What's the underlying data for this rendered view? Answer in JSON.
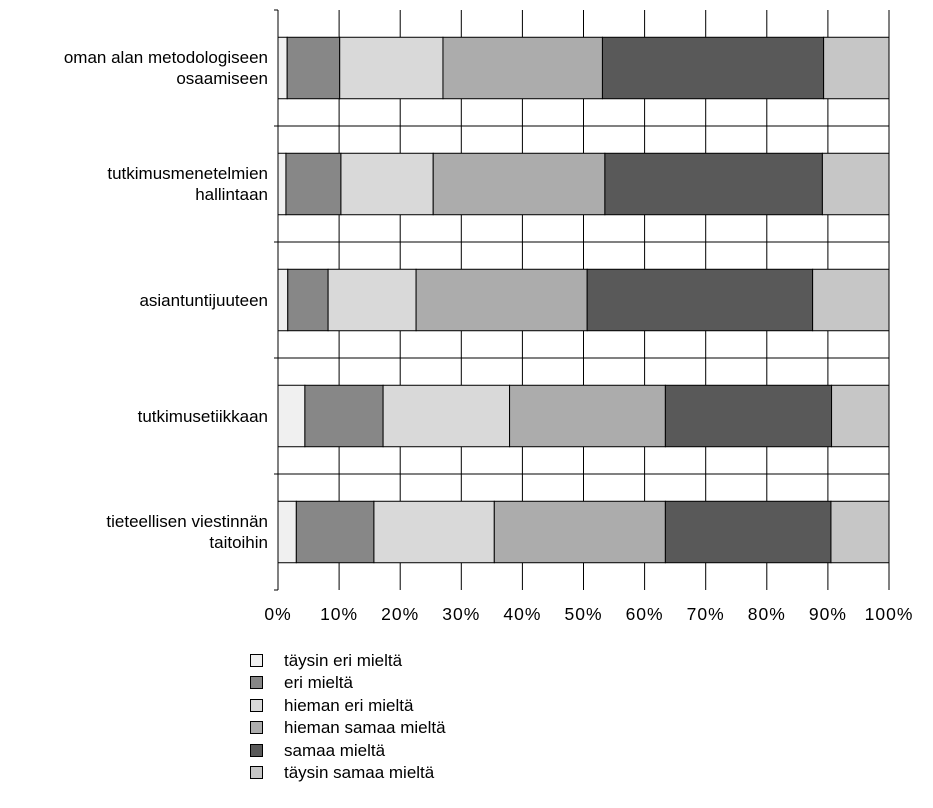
{
  "chart_data": {
    "type": "bar",
    "orientation": "horizontal",
    "stacked": true,
    "percent": true,
    "categories": [
      [
        "oman alan metodologiseen",
        "osaamiseen"
      ],
      [
        "tutkimusmenetelmien",
        "hallintaan"
      ],
      [
        "asiantuntijuuteen"
      ],
      [
        "tutkimusetiikkaan"
      ],
      [
        "tieteellisen viestinnän",
        "taitoihin"
      ]
    ],
    "series": [
      {
        "name": "täysin eri mieltä",
        "color": "#f0f0f0",
        "values": [
          1.5,
          1.3,
          1.6,
          4.4,
          3.0
        ]
      },
      {
        "name": "eri mieltä",
        "color": "#878787",
        "values": [
          8.6,
          9.0,
          6.6,
          12.8,
          12.7
        ]
      },
      {
        "name": "hieman eri mieltä",
        "color": "#d9d9d9",
        "values": [
          16.9,
          15.1,
          14.4,
          20.7,
          19.7
        ]
      },
      {
        "name": "hieman samaa mieltä",
        "color": "#acacac",
        "values": [
          26.1,
          28.1,
          28.0,
          25.5,
          28.0
        ]
      },
      {
        "name": "samaa mieltä",
        "color": "#595959",
        "values": [
          36.2,
          35.6,
          36.9,
          27.2,
          27.1
        ]
      },
      {
        "name": "täysin samaa mieltä",
        "color": "#c6c6c6",
        "values": [
          10.7,
          10.9,
          12.5,
          9.4,
          9.5
        ]
      }
    ],
    "xlim": [
      0,
      100
    ],
    "xticks": [
      "0%",
      "10%",
      "20%",
      "30%",
      "40%",
      "50%",
      "60%",
      "70%",
      "80%",
      "90%",
      "100%"
    ],
    "grid": true,
    "legend_position": "bottom"
  }
}
